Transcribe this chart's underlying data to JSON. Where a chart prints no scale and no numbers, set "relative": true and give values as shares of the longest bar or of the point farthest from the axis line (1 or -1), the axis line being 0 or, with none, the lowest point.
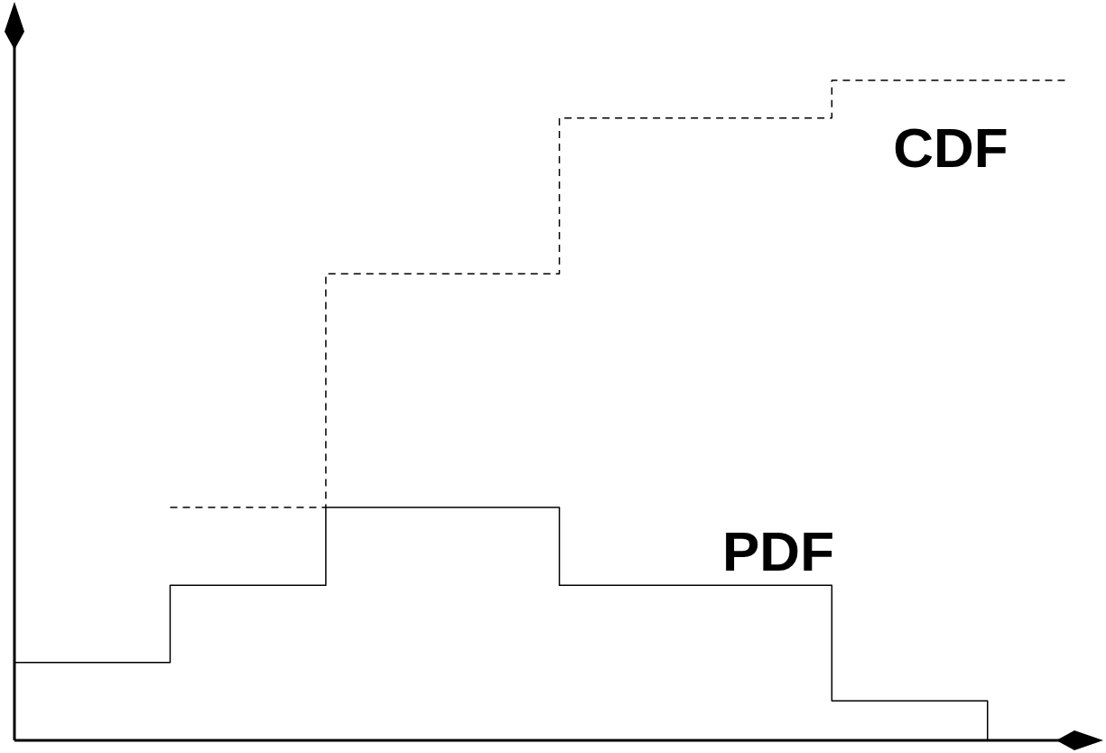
{
  "chart_data": {
    "type": "step",
    "relative": true,
    "categories": [
      null,
      null,
      null,
      null,
      null,
      null,
      null,
      null,
      null,
      null,
      null,
      null,
      null,
      null,
      null,
      null,
      null,
      null,
      null,
      null,
      null,
      null,
      null,
      null,
      null,
      null,
      null,
      null
    ],
    "series": [
      {
        "name": "PDF",
        "color": "#000000",
        "line_style": "solid",
        "values": [
          0.118,
          0.118,
          0.118,
          0.118,
          0.235,
          0.235,
          0.235,
          0.235,
          0.353,
          0.353,
          0.353,
          0.353,
          0.353,
          0.353,
          0.235,
          0.235,
          0.235,
          0.235,
          0.235,
          0.235,
          0.235,
          0.06,
          0.06,
          0.06,
          0.06,
          0,
          null,
          null
        ]
      },
      {
        "name": "CDF",
        "color": "#000000",
        "line_style": "dashed",
        "values": [
          null,
          null,
          null,
          null,
          0.353,
          0.353,
          0.353,
          0.353,
          0.707,
          0.707,
          0.707,
          0.707,
          0.707,
          0.707,
          0.943,
          0.943,
          0.943,
          0.943,
          0.943,
          0.943,
          0.943,
          1,
          1,
          1,
          1,
          1,
          1,
          1
        ]
      }
    ]
  }
}
